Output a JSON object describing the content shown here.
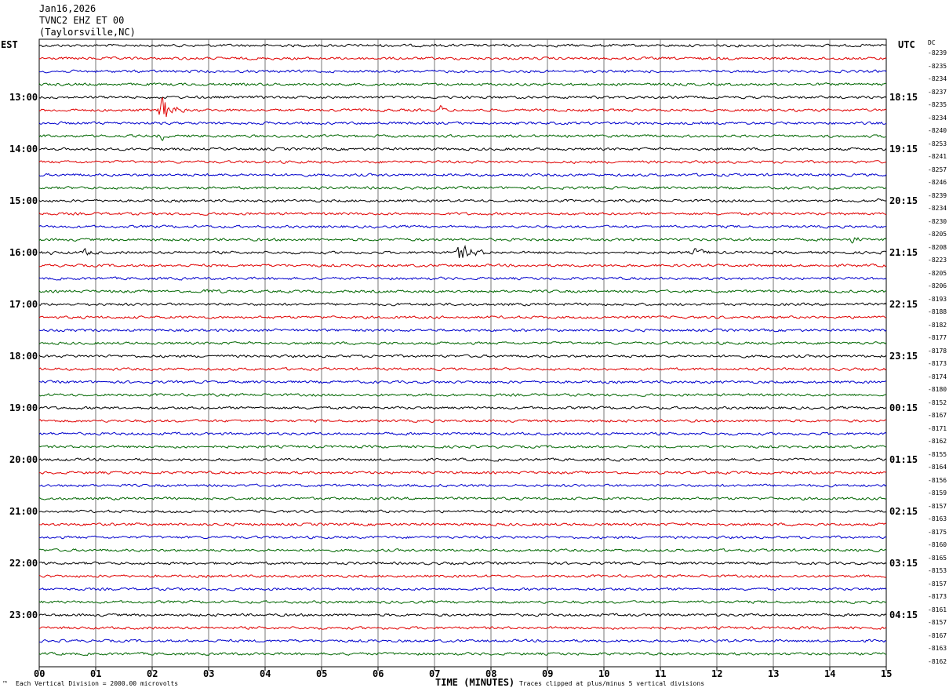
{
  "header": {
    "date": "Jan16,2026",
    "station": "TVNC2 EHZ ET 00",
    "location": "(Taylorsville,NC)"
  },
  "left_axis_label": "EST",
  "right_axis_label": "UTC",
  "dc_label": "DC",
  "chart_data": {
    "type": "line",
    "title": "TVNC2 EHZ ET 00",
    "xlabel": "TIME (MINUTES)",
    "x_ticks": [
      "00",
      "01",
      "02",
      "03",
      "04",
      "05",
      "06",
      "07",
      "08",
      "09",
      "10",
      "11",
      "12",
      "13",
      "14",
      "15"
    ],
    "xlim": [
      0,
      15
    ],
    "rows_per_hour": 4,
    "trace_colors": [
      "#000000",
      "#e00000",
      "#0000cc",
      "#006600"
    ],
    "est_labels": [
      "13:00",
      "14:00",
      "15:00",
      "16:00",
      "17:00",
      "18:00",
      "19:00",
      "20:00",
      "21:00",
      "22:00",
      "23:00"
    ],
    "utc_labels": [
      "18:15",
      "19:15",
      "20:15",
      "21:15",
      "22:15",
      "23:15",
      "00:15",
      "01:15",
      "02:15",
      "03:15",
      "04:15"
    ],
    "dc_offsets": [
      "-8239",
      "-8235",
      "-8234",
      "-8237",
      "-8235",
      "-8234",
      "-8240",
      "-8253",
      "-8241",
      "-8257",
      "-8246",
      "-8239",
      "-8234",
      "-8230",
      "-8205",
      "-8208",
      "-8223",
      "-8205",
      "-8206",
      "-8193",
      "-8188",
      "-8182",
      "-8177",
      "-8178",
      "-8173",
      "-8174",
      "-8180",
      "-8152",
      "-8167",
      "-8171",
      "-8162",
      "-8155",
      "-8164",
      "-8156",
      "-8159",
      "-8157",
      "-8163",
      "-8175",
      "-8160",
      "-8165",
      "-8153",
      "-8157",
      "-8173",
      "-8161",
      "-8157",
      "-8167",
      "-8163",
      "-8162"
    ],
    "events": [
      {
        "row": 5,
        "minute": 2.15,
        "amplitude": 36,
        "duration": 0.5
      },
      {
        "row": 5,
        "minute": 7.1,
        "amplitude": 9,
        "duration": 0.3
      },
      {
        "row": 7,
        "minute": 2.15,
        "amplitude": 10,
        "duration": 0.3
      },
      {
        "row": 12,
        "minute": 14.85,
        "amplitude": 7,
        "duration": 0.3
      },
      {
        "row": 15,
        "minute": 14.35,
        "amplitude": 9,
        "duration": 0.6
      },
      {
        "row": 15,
        "minute": 12.55,
        "amplitude": 5,
        "duration": 0.3
      },
      {
        "row": 16,
        "minute": 0.75,
        "amplitude": 8,
        "duration": 0.8
      },
      {
        "row": 16,
        "minute": 7.4,
        "amplitude": 16,
        "duration": 1.0
      },
      {
        "row": 16,
        "minute": 11.6,
        "amplitude": 8,
        "duration": 0.8
      },
      {
        "row": 16,
        "minute": 0.2,
        "amplitude": 5,
        "duration": 0.3
      },
      {
        "row": 19,
        "minute": 2.9,
        "amplitude": 6,
        "duration": 1.2
      }
    ]
  },
  "footer": {
    "scale_note": "Each Vertical Division = 2000.00 microvolts",
    "clip_note": "Traces clipped at plus/minus 5 vertical divisions",
    "mark": "™"
  }
}
